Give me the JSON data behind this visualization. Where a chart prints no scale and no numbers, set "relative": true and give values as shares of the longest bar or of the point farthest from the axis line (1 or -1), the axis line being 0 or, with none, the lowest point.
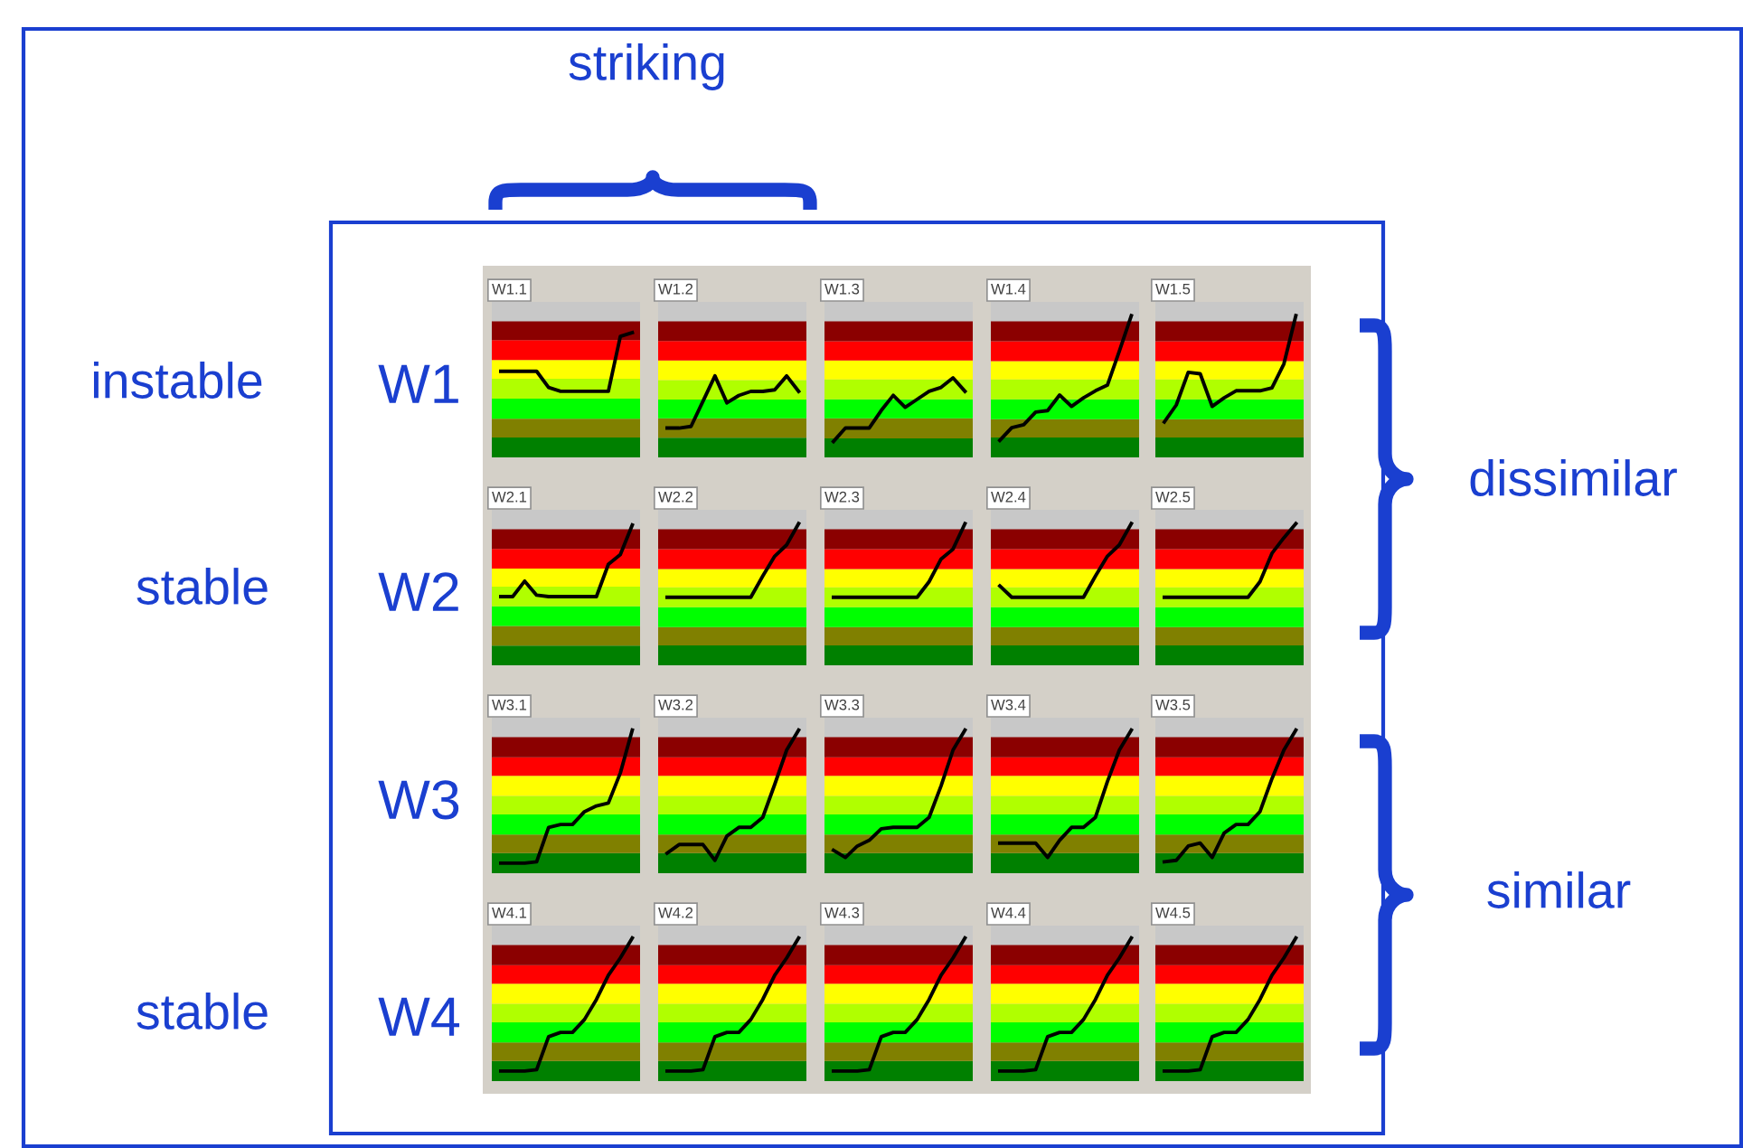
{
  "chart_data": [
    {
      "type": "line",
      "title": "W1.1",
      "relative": true,
      "categories": [
        null,
        null,
        null,
        null,
        null,
        null,
        null,
        null,
        null,
        null,
        null,
        null
      ],
      "series": [
        {
          "color": "#000000",
          "values": [
            0.69,
            0.69,
            0.69,
            0.69,
            0.56,
            0.53,
            0.53,
            0.53,
            0.53,
            0.53,
            0.97,
            1
          ]
        }
      ],
      "bands": [
        {
          "axis": "y",
          "from": 0,
          "to": 0.16,
          "color": "#008000"
        },
        {
          "axis": "y",
          "from": 0.16,
          "to": 0.31,
          "color": "#808000"
        },
        {
          "axis": "y",
          "from": 0.31,
          "to": 0.47,
          "color": "#00ff00"
        },
        {
          "axis": "y",
          "from": 0.47,
          "to": 0.63,
          "color": "#b0ff00"
        },
        {
          "axis": "y",
          "from": 0.63,
          "to": 0.78,
          "color": "#ffff00"
        },
        {
          "axis": "y",
          "from": 0.78,
          "to": 0.94,
          "color": "#ff0000"
        },
        {
          "axis": "y",
          "from": 0.94,
          "to": 1.09,
          "color": "#8b0000"
        }
      ]
    },
    {
      "type": "line",
      "title": "W1.2",
      "relative": true,
      "categories": [
        null,
        null,
        null,
        null,
        null,
        null,
        null,
        null,
        null,
        null,
        null,
        null
      ],
      "series": [
        {
          "color": "#000000",
          "values": [
            0.36,
            0.36,
            0.38,
            0.69,
            1,
            0.67,
            0.76,
            0.81,
            0.81,
            0.83,
            1,
            0.81
          ]
        }
      ],
      "bands": [
        {
          "axis": "y",
          "from": 0,
          "to": 0.24,
          "color": "#008000"
        },
        {
          "axis": "y",
          "from": 0.24,
          "to": 0.48,
          "color": "#808000"
        },
        {
          "axis": "y",
          "from": 0.48,
          "to": 0.71,
          "color": "#00ff00"
        },
        {
          "axis": "y",
          "from": 0.71,
          "to": 0.95,
          "color": "#b0ff00"
        },
        {
          "axis": "y",
          "from": 0.95,
          "to": 1.19,
          "color": "#ffff00"
        },
        {
          "axis": "y",
          "from": 1.19,
          "to": 1.43,
          "color": "#ff0000"
        },
        {
          "axis": "y",
          "from": 1.43,
          "to": 1.67,
          "color": "#8b0000"
        }
      ]
    },
    {
      "type": "line",
      "title": "W1.3",
      "relative": true,
      "categories": [
        null,
        null,
        null,
        null,
        null,
        null,
        null,
        null,
        null,
        null,
        null,
        null
      ],
      "series": [
        {
          "color": "#000000",
          "values": [
            0.2,
            0.37,
            0.37,
            0.37,
            0.59,
            0.78,
            0.63,
            0.73,
            0.83,
            0.88,
            1,
            0.83
          ]
        }
      ],
      "bands": [
        {
          "axis": "y",
          "from": 0,
          "to": 0.24,
          "color": "#008000"
        },
        {
          "axis": "y",
          "from": 0.24,
          "to": 0.49,
          "color": "#808000"
        },
        {
          "axis": "y",
          "from": 0.49,
          "to": 0.73,
          "color": "#00ff00"
        },
        {
          "axis": "y",
          "from": 0.73,
          "to": 0.98,
          "color": "#b0ff00"
        },
        {
          "axis": "y",
          "from": 0.98,
          "to": 1.22,
          "color": "#ffff00"
        },
        {
          "axis": "y",
          "from": 1.22,
          "to": 1.46,
          "color": "#ff0000"
        },
        {
          "axis": "y",
          "from": 1.46,
          "to": 1.71,
          "color": "#8b0000"
        }
      ]
    },
    {
      "type": "line",
      "title": "W1.4",
      "relative": true,
      "categories": [
        null,
        null,
        null,
        null,
        null,
        null,
        null,
        null,
        null,
        null,
        null,
        null
      ],
      "series": [
        {
          "color": "#000000",
          "values": [
            0.12,
            0.21,
            0.23,
            0.32,
            0.33,
            0.44,
            0.36,
            0.42,
            0.47,
            0.51,
            0.75,
            1
          ]
        }
      ],
      "bands": [
        {
          "axis": "y",
          "from": 0,
          "to": 0.14,
          "color": "#008000"
        },
        {
          "axis": "y",
          "from": 0.14,
          "to": 0.27,
          "color": "#808000"
        },
        {
          "axis": "y",
          "from": 0.27,
          "to": 0.41,
          "color": "#00ff00"
        },
        {
          "axis": "y",
          "from": 0.41,
          "to": 0.55,
          "color": "#b0ff00"
        },
        {
          "axis": "y",
          "from": 0.55,
          "to": 0.68,
          "color": "#ffff00"
        },
        {
          "axis": "y",
          "from": 0.68,
          "to": 0.82,
          "color": "#ff0000"
        },
        {
          "axis": "y",
          "from": 0.82,
          "to": 0.96,
          "color": "#8b0000"
        }
      ]
    },
    {
      "type": "line",
      "title": "W1.5",
      "relative": true,
      "categories": [
        null,
        null,
        null,
        null,
        null,
        null,
        null,
        null,
        null,
        null,
        null,
        null
      ],
      "series": [
        {
          "color": "#000000",
          "values": [
            0.25,
            0.37,
            0.6,
            0.59,
            0.36,
            0.42,
            0.47,
            0.47,
            0.47,
            0.49,
            0.66,
            1
          ]
        }
      ],
      "bands": [
        {
          "axis": "y",
          "from": 0,
          "to": 0.14,
          "color": "#008000"
        },
        {
          "axis": "y",
          "from": 0.14,
          "to": 0.27,
          "color": "#808000"
        },
        {
          "axis": "y",
          "from": 0.27,
          "to": 0.41,
          "color": "#00ff00"
        },
        {
          "axis": "y",
          "from": 0.41,
          "to": 0.55,
          "color": "#b0ff00"
        },
        {
          "axis": "y",
          "from": 0.55,
          "to": 0.68,
          "color": "#ffff00"
        },
        {
          "axis": "y",
          "from": 0.68,
          "to": 0.82,
          "color": "#ff0000"
        },
        {
          "axis": "y",
          "from": 0.82,
          "to": 0.96,
          "color": "#8b0000"
        }
      ]
    },
    {
      "type": "line",
      "title": "W2.1",
      "relative": true,
      "categories": [
        null,
        null,
        null,
        null,
        null,
        null,
        null,
        null,
        null,
        null,
        null,
        null
      ],
      "series": [
        {
          "color": "#000000",
          "values": [
            0.49,
            0.49,
            0.6,
            0.5,
            0.49,
            0.49,
            0.49,
            0.49,
            0.49,
            0.72,
            0.79,
            1
          ]
        }
      ],
      "bands": [
        {
          "axis": "y",
          "from": 0,
          "to": 0.14,
          "color": "#008000"
        },
        {
          "axis": "y",
          "from": 0.14,
          "to": 0.28,
          "color": "#808000"
        },
        {
          "axis": "y",
          "from": 0.28,
          "to": 0.42,
          "color": "#00ff00"
        },
        {
          "axis": "y",
          "from": 0.42,
          "to": 0.56,
          "color": "#b0ff00"
        },
        {
          "axis": "y",
          "from": 0.56,
          "to": 0.69,
          "color": "#ffff00"
        },
        {
          "axis": "y",
          "from": 0.69,
          "to": 0.83,
          "color": "#ff0000"
        },
        {
          "axis": "y",
          "from": 0.83,
          "to": 0.97,
          "color": "#8b0000"
        }
      ]
    },
    {
      "type": "line",
      "title": "W2.2",
      "relative": true,
      "categories": [
        null,
        null,
        null,
        null,
        null,
        null,
        null,
        null,
        null,
        null,
        null,
        null
      ],
      "series": [
        {
          "color": "#000000",
          "values": [
            0.48,
            0.48,
            0.48,
            0.48,
            0.48,
            0.48,
            0.48,
            0.48,
            0.63,
            0.77,
            0.85,
            1
          ]
        }
      ],
      "bands": [
        {
          "axis": "y",
          "from": 0,
          "to": 0.14,
          "color": "#008000"
        },
        {
          "axis": "y",
          "from": 0.14,
          "to": 0.27,
          "color": "#808000"
        },
        {
          "axis": "y",
          "from": 0.27,
          "to": 0.41,
          "color": "#00ff00"
        },
        {
          "axis": "y",
          "from": 0.41,
          "to": 0.55,
          "color": "#b0ff00"
        },
        {
          "axis": "y",
          "from": 0.55,
          "to": 0.68,
          "color": "#ffff00"
        },
        {
          "axis": "y",
          "from": 0.68,
          "to": 0.82,
          "color": "#ff0000"
        },
        {
          "axis": "y",
          "from": 0.82,
          "to": 0.96,
          "color": "#8b0000"
        }
      ]
    },
    {
      "type": "line",
      "title": "W2.3",
      "relative": true,
      "categories": [
        null,
        null,
        null,
        null,
        null,
        null,
        null,
        null,
        null,
        null,
        null,
        null
      ],
      "series": [
        {
          "color": "#000000",
          "values": [
            0.48,
            0.48,
            0.48,
            0.48,
            0.48,
            0.48,
            0.48,
            0.48,
            0.59,
            0.75,
            0.82,
            1
          ]
        }
      ],
      "bands": [
        {
          "axis": "y",
          "from": 0,
          "to": 0.14,
          "color": "#008000"
        },
        {
          "axis": "y",
          "from": 0.14,
          "to": 0.27,
          "color": "#808000"
        },
        {
          "axis": "y",
          "from": 0.27,
          "to": 0.41,
          "color": "#00ff00"
        },
        {
          "axis": "y",
          "from": 0.41,
          "to": 0.55,
          "color": "#b0ff00"
        },
        {
          "axis": "y",
          "from": 0.55,
          "to": 0.68,
          "color": "#ffff00"
        },
        {
          "axis": "y",
          "from": 0.68,
          "to": 0.82,
          "color": "#ff0000"
        },
        {
          "axis": "y",
          "from": 0.82,
          "to": 0.96,
          "color": "#8b0000"
        }
      ]
    },
    {
      "type": "line",
      "title": "W2.4",
      "relative": true,
      "categories": [
        null,
        null,
        null,
        null,
        null,
        null,
        null,
        null,
        null,
        null,
        null,
        null
      ],
      "series": [
        {
          "color": "#000000",
          "values": [
            0.56,
            0.48,
            0.48,
            0.48,
            0.48,
            0.48,
            0.48,
            0.48,
            0.63,
            0.77,
            0.85,
            1
          ]
        }
      ],
      "bands": [
        {
          "axis": "y",
          "from": 0,
          "to": 0.14,
          "color": "#008000"
        },
        {
          "axis": "y",
          "from": 0.14,
          "to": 0.27,
          "color": "#808000"
        },
        {
          "axis": "y",
          "from": 0.27,
          "to": 0.41,
          "color": "#00ff00"
        },
        {
          "axis": "y",
          "from": 0.41,
          "to": 0.55,
          "color": "#b0ff00"
        },
        {
          "axis": "y",
          "from": 0.55,
          "to": 0.68,
          "color": "#ffff00"
        },
        {
          "axis": "y",
          "from": 0.68,
          "to": 0.82,
          "color": "#ff0000"
        },
        {
          "axis": "y",
          "from": 0.82,
          "to": 0.96,
          "color": "#8b0000"
        }
      ]
    },
    {
      "type": "line",
      "title": "W2.5",
      "relative": true,
      "categories": [
        null,
        null,
        null,
        null,
        null,
        null,
        null,
        null,
        null,
        null,
        null,
        null
      ],
      "series": [
        {
          "color": "#000000",
          "values": [
            0.48,
            0.48,
            0.48,
            0.48,
            0.48,
            0.48,
            0.48,
            0.48,
            0.59,
            0.79,
            0.9,
            1
          ]
        }
      ],
      "bands": [
        {
          "axis": "y",
          "from": 0,
          "to": 0.14,
          "color": "#008000"
        },
        {
          "axis": "y",
          "from": 0.14,
          "to": 0.27,
          "color": "#808000"
        },
        {
          "axis": "y",
          "from": 0.27,
          "to": 0.41,
          "color": "#00ff00"
        },
        {
          "axis": "y",
          "from": 0.41,
          "to": 0.55,
          "color": "#b0ff00"
        },
        {
          "axis": "y",
          "from": 0.55,
          "to": 0.68,
          "color": "#ffff00"
        },
        {
          "axis": "y",
          "from": 0.68,
          "to": 0.82,
          "color": "#ff0000"
        },
        {
          "axis": "y",
          "from": 0.82,
          "to": 0.96,
          "color": "#8b0000"
        }
      ]
    },
    {
      "type": "line",
      "title": "W3.1",
      "relative": true,
      "categories": [
        null,
        null,
        null,
        null,
        null,
        null,
        null,
        null,
        null,
        null,
        null,
        null
      ],
      "series": [
        {
          "color": "#000000",
          "values": [
            0.07,
            0.07,
            0.07,
            0.08,
            0.32,
            0.34,
            0.34,
            0.43,
            0.47,
            0.49,
            0.7,
            1
          ]
        }
      ],
      "bands": [
        {
          "axis": "y",
          "from": 0,
          "to": 0.14,
          "color": "#008000"
        },
        {
          "axis": "y",
          "from": 0.14,
          "to": 0.27,
          "color": "#808000"
        },
        {
          "axis": "y",
          "from": 0.27,
          "to": 0.41,
          "color": "#00ff00"
        },
        {
          "axis": "y",
          "from": 0.41,
          "to": 0.54,
          "color": "#b0ff00"
        },
        {
          "axis": "y",
          "from": 0.54,
          "to": 0.68,
          "color": "#ffff00"
        },
        {
          "axis": "y",
          "from": 0.68,
          "to": 0.81,
          "color": "#ff0000"
        },
        {
          "axis": "y",
          "from": 0.81,
          "to": 0.95,
          "color": "#8b0000"
        }
      ]
    },
    {
      "type": "line",
      "title": "W3.2",
      "relative": true,
      "categories": [
        null,
        null,
        null,
        null,
        null,
        null,
        null,
        null,
        null,
        null,
        null,
        null
      ],
      "series": [
        {
          "color": "#000000",
          "values": [
            0.14,
            0.2,
            0.2,
            0.2,
            0.09,
            0.26,
            0.32,
            0.32,
            0.39,
            0.62,
            0.86,
            1
          ]
        }
      ],
      "bands": [
        {
          "axis": "y",
          "from": 0,
          "to": 0.14,
          "color": "#008000"
        },
        {
          "axis": "y",
          "from": 0.14,
          "to": 0.27,
          "color": "#808000"
        },
        {
          "axis": "y",
          "from": 0.27,
          "to": 0.41,
          "color": "#00ff00"
        },
        {
          "axis": "y",
          "from": 0.41,
          "to": 0.54,
          "color": "#b0ff00"
        },
        {
          "axis": "y",
          "from": 0.54,
          "to": 0.68,
          "color": "#ffff00"
        },
        {
          "axis": "y",
          "from": 0.68,
          "to": 0.81,
          "color": "#ff0000"
        },
        {
          "axis": "y",
          "from": 0.81,
          "to": 0.95,
          "color": "#8b0000"
        }
      ]
    },
    {
      "type": "line",
      "title": "W3.3",
      "relative": true,
      "categories": [
        null,
        null,
        null,
        null,
        null,
        null,
        null,
        null,
        null,
        null,
        null,
        null
      ],
      "series": [
        {
          "color": "#000000",
          "values": [
            0.16,
            0.11,
            0.19,
            0.23,
            0.31,
            0.32,
            0.32,
            0.32,
            0.39,
            0.61,
            0.86,
            1
          ]
        }
      ],
      "bands": [
        {
          "axis": "y",
          "from": 0,
          "to": 0.14,
          "color": "#008000"
        },
        {
          "axis": "y",
          "from": 0.14,
          "to": 0.27,
          "color": "#808000"
        },
        {
          "axis": "y",
          "from": 0.27,
          "to": 0.41,
          "color": "#00ff00"
        },
        {
          "axis": "y",
          "from": 0.41,
          "to": 0.54,
          "color": "#b0ff00"
        },
        {
          "axis": "y",
          "from": 0.54,
          "to": 0.68,
          "color": "#ffff00"
        },
        {
          "axis": "y",
          "from": 0.68,
          "to": 0.81,
          "color": "#ff0000"
        },
        {
          "axis": "y",
          "from": 0.81,
          "to": 0.95,
          "color": "#8b0000"
        }
      ]
    },
    {
      "type": "line",
      "title": "W3.4",
      "relative": true,
      "categories": [
        null,
        null,
        null,
        null,
        null,
        null,
        null,
        null,
        null,
        null,
        null,
        null
      ],
      "series": [
        {
          "color": "#000000",
          "values": [
            0.21,
            0.21,
            0.21,
            0.21,
            0.11,
            0.23,
            0.32,
            0.32,
            0.39,
            0.64,
            0.86,
            1
          ]
        }
      ],
      "bands": [
        {
          "axis": "y",
          "from": 0,
          "to": 0.14,
          "color": "#008000"
        },
        {
          "axis": "y",
          "from": 0.14,
          "to": 0.27,
          "color": "#808000"
        },
        {
          "axis": "y",
          "from": 0.27,
          "to": 0.41,
          "color": "#00ff00"
        },
        {
          "axis": "y",
          "from": 0.41,
          "to": 0.54,
          "color": "#b0ff00"
        },
        {
          "axis": "y",
          "from": 0.54,
          "to": 0.68,
          "color": "#ffff00"
        },
        {
          "axis": "y",
          "from": 0.68,
          "to": 0.81,
          "color": "#ff0000"
        },
        {
          "axis": "y",
          "from": 0.81,
          "to": 0.95,
          "color": "#8b0000"
        }
      ]
    },
    {
      "type": "line",
      "title": "W3.5",
      "relative": true,
      "categories": [
        null,
        null,
        null,
        null,
        null,
        null,
        null,
        null,
        null,
        null,
        null,
        null
      ],
      "series": [
        {
          "color": "#000000",
          "values": [
            0.08,
            0.09,
            0.19,
            0.21,
            0.11,
            0.28,
            0.34,
            0.34,
            0.43,
            0.66,
            0.86,
            1
          ]
        }
      ],
      "bands": [
        {
          "axis": "y",
          "from": 0,
          "to": 0.14,
          "color": "#008000"
        },
        {
          "axis": "y",
          "from": 0.14,
          "to": 0.27,
          "color": "#808000"
        },
        {
          "axis": "y",
          "from": 0.27,
          "to": 0.41,
          "color": "#00ff00"
        },
        {
          "axis": "y",
          "from": 0.41,
          "to": 0.54,
          "color": "#b0ff00"
        },
        {
          "axis": "y",
          "from": 0.54,
          "to": 0.68,
          "color": "#ffff00"
        },
        {
          "axis": "y",
          "from": 0.68,
          "to": 0.81,
          "color": "#ff0000"
        },
        {
          "axis": "y",
          "from": 0.81,
          "to": 0.95,
          "color": "#8b0000"
        }
      ]
    },
    {
      "type": "line",
      "title": "W4.1",
      "relative": true,
      "categories": [
        null,
        null,
        null,
        null,
        null,
        null,
        null,
        null,
        null,
        null,
        null,
        null
      ],
      "series": [
        {
          "color": "#000000",
          "values": [
            0.07,
            0.07,
            0.07,
            0.08,
            0.31,
            0.34,
            0.34,
            0.43,
            0.57,
            0.74,
            0.86,
            1
          ]
        }
      ],
      "bands": [
        {
          "axis": "y",
          "from": 0,
          "to": 0.14,
          "color": "#008000"
        },
        {
          "axis": "y",
          "from": 0.14,
          "to": 0.27,
          "color": "#808000"
        },
        {
          "axis": "y",
          "from": 0.27,
          "to": 0.41,
          "color": "#00ff00"
        },
        {
          "axis": "y",
          "from": 0.41,
          "to": 0.54,
          "color": "#b0ff00"
        },
        {
          "axis": "y",
          "from": 0.54,
          "to": 0.68,
          "color": "#ffff00"
        },
        {
          "axis": "y",
          "from": 0.68,
          "to": 0.81,
          "color": "#ff0000"
        },
        {
          "axis": "y",
          "from": 0.81,
          "to": 0.95,
          "color": "#8b0000"
        }
      ]
    },
    {
      "type": "line",
      "title": "W4.2",
      "relative": true,
      "categories": [
        null,
        null,
        null,
        null,
        null,
        null,
        null,
        null,
        null,
        null,
        null,
        null
      ],
      "series": [
        {
          "color": "#000000",
          "values": [
            0.07,
            0.07,
            0.07,
            0.08,
            0.31,
            0.34,
            0.34,
            0.43,
            0.57,
            0.74,
            0.86,
            1
          ]
        }
      ],
      "bands": [
        {
          "axis": "y",
          "from": 0,
          "to": 0.14,
          "color": "#008000"
        },
        {
          "axis": "y",
          "from": 0.14,
          "to": 0.27,
          "color": "#808000"
        },
        {
          "axis": "y",
          "from": 0.27,
          "to": 0.41,
          "color": "#00ff00"
        },
        {
          "axis": "y",
          "from": 0.41,
          "to": 0.54,
          "color": "#b0ff00"
        },
        {
          "axis": "y",
          "from": 0.54,
          "to": 0.68,
          "color": "#ffff00"
        },
        {
          "axis": "y",
          "from": 0.68,
          "to": 0.81,
          "color": "#ff0000"
        },
        {
          "axis": "y",
          "from": 0.81,
          "to": 0.95,
          "color": "#8b0000"
        }
      ]
    },
    {
      "type": "line",
      "title": "W4.3",
      "relative": true,
      "categories": [
        null,
        null,
        null,
        null,
        null,
        null,
        null,
        null,
        null,
        null,
        null,
        null
      ],
      "series": [
        {
          "color": "#000000",
          "values": [
            0.07,
            0.07,
            0.07,
            0.08,
            0.31,
            0.34,
            0.34,
            0.43,
            0.57,
            0.74,
            0.86,
            1
          ]
        }
      ],
      "bands": [
        {
          "axis": "y",
          "from": 0,
          "to": 0.14,
          "color": "#008000"
        },
        {
          "axis": "y",
          "from": 0.14,
          "to": 0.27,
          "color": "#808000"
        },
        {
          "axis": "y",
          "from": 0.27,
          "to": 0.41,
          "color": "#00ff00"
        },
        {
          "axis": "y",
          "from": 0.41,
          "to": 0.54,
          "color": "#b0ff00"
        },
        {
          "axis": "y",
          "from": 0.54,
          "to": 0.68,
          "color": "#ffff00"
        },
        {
          "axis": "y",
          "from": 0.68,
          "to": 0.81,
          "color": "#ff0000"
        },
        {
          "axis": "y",
          "from": 0.81,
          "to": 0.95,
          "color": "#8b0000"
        }
      ]
    },
    {
      "type": "line",
      "title": "W4.4",
      "relative": true,
      "categories": [
        null,
        null,
        null,
        null,
        null,
        null,
        null,
        null,
        null,
        null,
        null,
        null
      ],
      "series": [
        {
          "color": "#000000",
          "values": [
            0.07,
            0.07,
            0.07,
            0.08,
            0.31,
            0.34,
            0.34,
            0.43,
            0.57,
            0.74,
            0.86,
            1
          ]
        }
      ],
      "bands": [
        {
          "axis": "y",
          "from": 0,
          "to": 0.14,
          "color": "#008000"
        },
        {
          "axis": "y",
          "from": 0.14,
          "to": 0.27,
          "color": "#808000"
        },
        {
          "axis": "y",
          "from": 0.27,
          "to": 0.41,
          "color": "#00ff00"
        },
        {
          "axis": "y",
          "from": 0.41,
          "to": 0.54,
          "color": "#b0ff00"
        },
        {
          "axis": "y",
          "from": 0.54,
          "to": 0.68,
          "color": "#ffff00"
        },
        {
          "axis": "y",
          "from": 0.68,
          "to": 0.81,
          "color": "#ff0000"
        },
        {
          "axis": "y",
          "from": 0.81,
          "to": 0.95,
          "color": "#8b0000"
        }
      ]
    },
    {
      "type": "line",
      "title": "W4.5",
      "relative": true,
      "categories": [
        null,
        null,
        null,
        null,
        null,
        null,
        null,
        null,
        null,
        null,
        null,
        null
      ],
      "series": [
        {
          "color": "#000000",
          "values": [
            0.07,
            0.07,
            0.07,
            0.08,
            0.31,
            0.34,
            0.34,
            0.43,
            0.57,
            0.74,
            0.86,
            1
          ]
        }
      ],
      "bands": [
        {
          "axis": "y",
          "from": 0,
          "to": 0.14,
          "color": "#008000"
        },
        {
          "axis": "y",
          "from": 0.14,
          "to": 0.27,
          "color": "#808000"
        },
        {
          "axis": "y",
          "from": 0.27,
          "to": 0.41,
          "color": "#00ff00"
        },
        {
          "axis": "y",
          "from": 0.41,
          "to": 0.54,
          "color": "#b0ff00"
        },
        {
          "axis": "y",
          "from": 0.54,
          "to": 0.68,
          "color": "#ffff00"
        },
        {
          "axis": "y",
          "from": 0.68,
          "to": 0.81,
          "color": "#ff0000"
        },
        {
          "axis": "y",
          "from": 0.81,
          "to": 0.95,
          "color": "#8b0000"
        }
      ]
    },
    {
      "type": "other",
      "annotations": [
        "striking",
        "instable",
        "stable",
        "stable",
        "W1",
        "W2",
        "W3",
        "W4",
        "dissimilar",
        "similar"
      ]
    }
  ]
}
